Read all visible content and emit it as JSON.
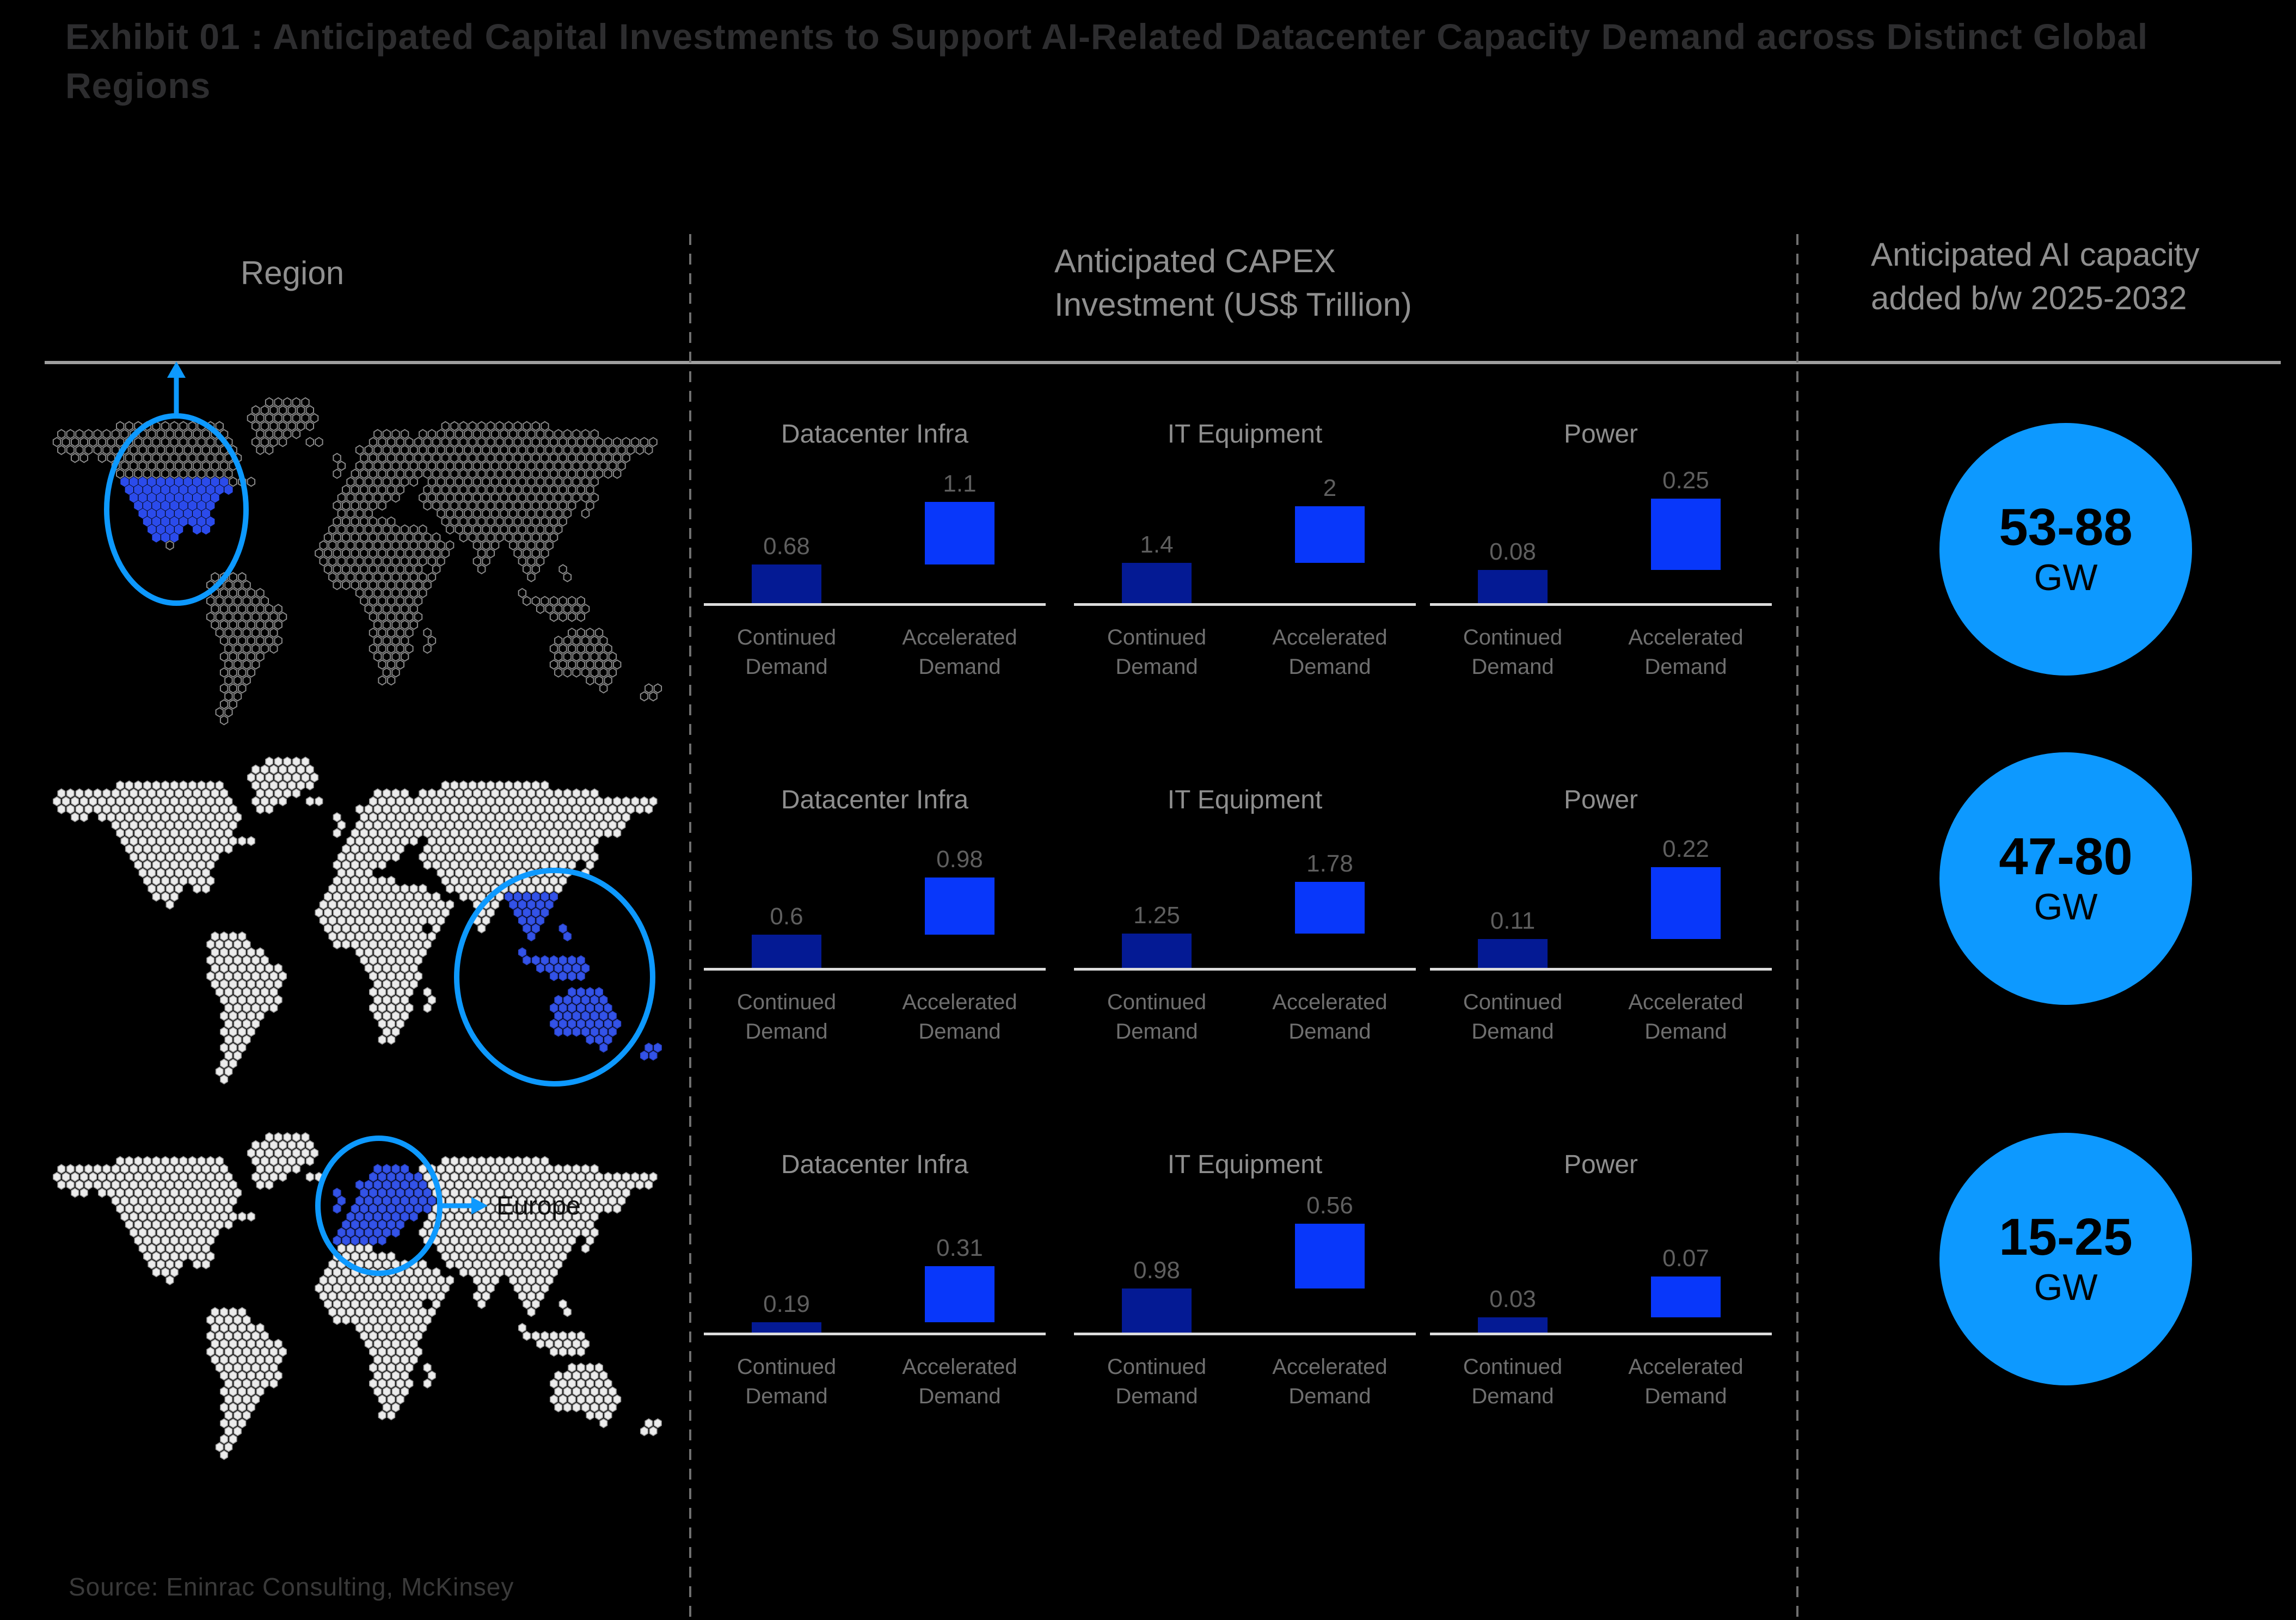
{
  "title": "Exhibit 01 : Anticipated Capital Investments to Support AI-Related Datacenter Capacity Demand across Distinct Global Regions",
  "columns": {
    "region": "Region",
    "capex": [
      "Anticipated CAPEX",
      "Investment (US$ Trillion)"
    ],
    "capacity": [
      "Anticipated AI capacity",
      "added b/w 2025-2032"
    ]
  },
  "legend_labels": {
    "continued": [
      "Continued",
      "Demand"
    ],
    "accelerated": [
      "Accelerated",
      "Demand"
    ]
  },
  "rows": [
    {
      "highlighted_region": "North America (US)",
      "map_label": "",
      "capacity_value": "53-88",
      "capacity_unit": "GW",
      "charts": [
        {
          "title": "Datacenter Infra",
          "values": {
            "continued": "0.68",
            "accelerated": "1.1"
          }
        },
        {
          "title": "IT Equipment",
          "values": {
            "continued": "1.4",
            "accelerated": "2"
          }
        },
        {
          "title": "Power",
          "values": {
            "continued": "0.08",
            "accelerated": "0.25"
          }
        }
      ]
    },
    {
      "highlighted_region": "Southeast Asia & Australia",
      "map_label": "",
      "capacity_value": "47-80",
      "capacity_unit": "GW",
      "charts": [
        {
          "title": "Datacenter Infra",
          "values": {
            "continued": "0.6",
            "accelerated": "0.98"
          }
        },
        {
          "title": "IT Equipment",
          "values": {
            "continued": "1.25",
            "accelerated": "1.78"
          }
        },
        {
          "title": "Power",
          "values": {
            "continued": "0.11",
            "accelerated": "0.22"
          }
        }
      ]
    },
    {
      "highlighted_region": "Europe",
      "map_label": "Europe",
      "capacity_value": "15-25",
      "capacity_unit": "GW",
      "charts": [
        {
          "title": "Datacenter Infra",
          "values": {
            "continued": "0.19",
            "accelerated": "0.31"
          }
        },
        {
          "title": "IT Equipment",
          "values": {
            "continued": "0.98",
            "accelerated": "0.56"
          }
        },
        {
          "title": "Power",
          "values": {
            "continued": "0.03",
            "accelerated": "0.07"
          }
        }
      ]
    }
  ],
  "source": "Source: Eninrac Consulting, McKinsey",
  "colors": {
    "background": "#000000",
    "accent_azure": "#0D99FF",
    "bar_continued": "#041A94",
    "bar_accelerated": "#0837FA",
    "map_highlight_row1": "#2B4BEB",
    "map_highlight_rows23": "#3353E8",
    "capacity_circle_fill": "#0D99FF"
  },
  "chart_data": [
    {
      "type": "bar",
      "region": "North America (US)",
      "title": "Datacenter Infra",
      "categories": [
        "Continued Demand",
        "Accelerated Demand"
      ],
      "values": [
        0.68,
        1.1
      ],
      "ylabel": "US$ Trillion"
    },
    {
      "type": "bar",
      "region": "North America (US)",
      "title": "IT Equipment",
      "categories": [
        "Continued Demand",
        "Accelerated Demand"
      ],
      "values": [
        1.4,
        2
      ],
      "ylabel": "US$ Trillion"
    },
    {
      "type": "bar",
      "region": "North America (US)",
      "title": "Power",
      "categories": [
        "Continued Demand",
        "Accelerated Demand"
      ],
      "values": [
        0.08,
        0.25
      ],
      "ylabel": "US$ Trillion"
    },
    {
      "type": "bar",
      "region": "Southeast Asia & Australia",
      "title": "Datacenter Infra",
      "categories": [
        "Continued Demand",
        "Accelerated Demand"
      ],
      "values": [
        0.6,
        0.98
      ],
      "ylabel": "US$ Trillion"
    },
    {
      "type": "bar",
      "region": "Southeast Asia & Australia",
      "title": "IT Equipment",
      "categories": [
        "Continued Demand",
        "Accelerated Demand"
      ],
      "values": [
        1.25,
        1.78
      ],
      "ylabel": "US$ Trillion"
    },
    {
      "type": "bar",
      "region": "Southeast Asia & Australia",
      "title": "Power",
      "categories": [
        "Continued Demand",
        "Accelerated Demand"
      ],
      "values": [
        0.11,
        0.22
      ],
      "ylabel": "US$ Trillion"
    },
    {
      "type": "bar",
      "region": "Europe",
      "title": "Datacenter Infra",
      "categories": [
        "Continued Demand",
        "Accelerated Demand"
      ],
      "values": [
        0.19,
        0.31
      ],
      "ylabel": "US$ Trillion"
    },
    {
      "type": "bar",
      "region": "Europe",
      "title": "IT Equipment",
      "categories": [
        "Continued Demand",
        "Accelerated Demand"
      ],
      "values": [
        0.98,
        0.56
      ],
      "ylabel": "US$ Trillion"
    },
    {
      "type": "bar",
      "region": "Europe",
      "title": "Power",
      "categories": [
        "Continued Demand",
        "Accelerated Demand"
      ],
      "values": [
        0.03,
        0.07
      ],
      "ylabel": "US$ Trillion"
    },
    {
      "type": "table",
      "title": "Anticipated AI capacity added b/w 2025-2032",
      "categories": [
        "North America (US)",
        "Southeast Asia & Australia",
        "Europe"
      ],
      "values": [
        "53-88 GW",
        "47-80 GW",
        "15-25 GW"
      ]
    }
  ]
}
